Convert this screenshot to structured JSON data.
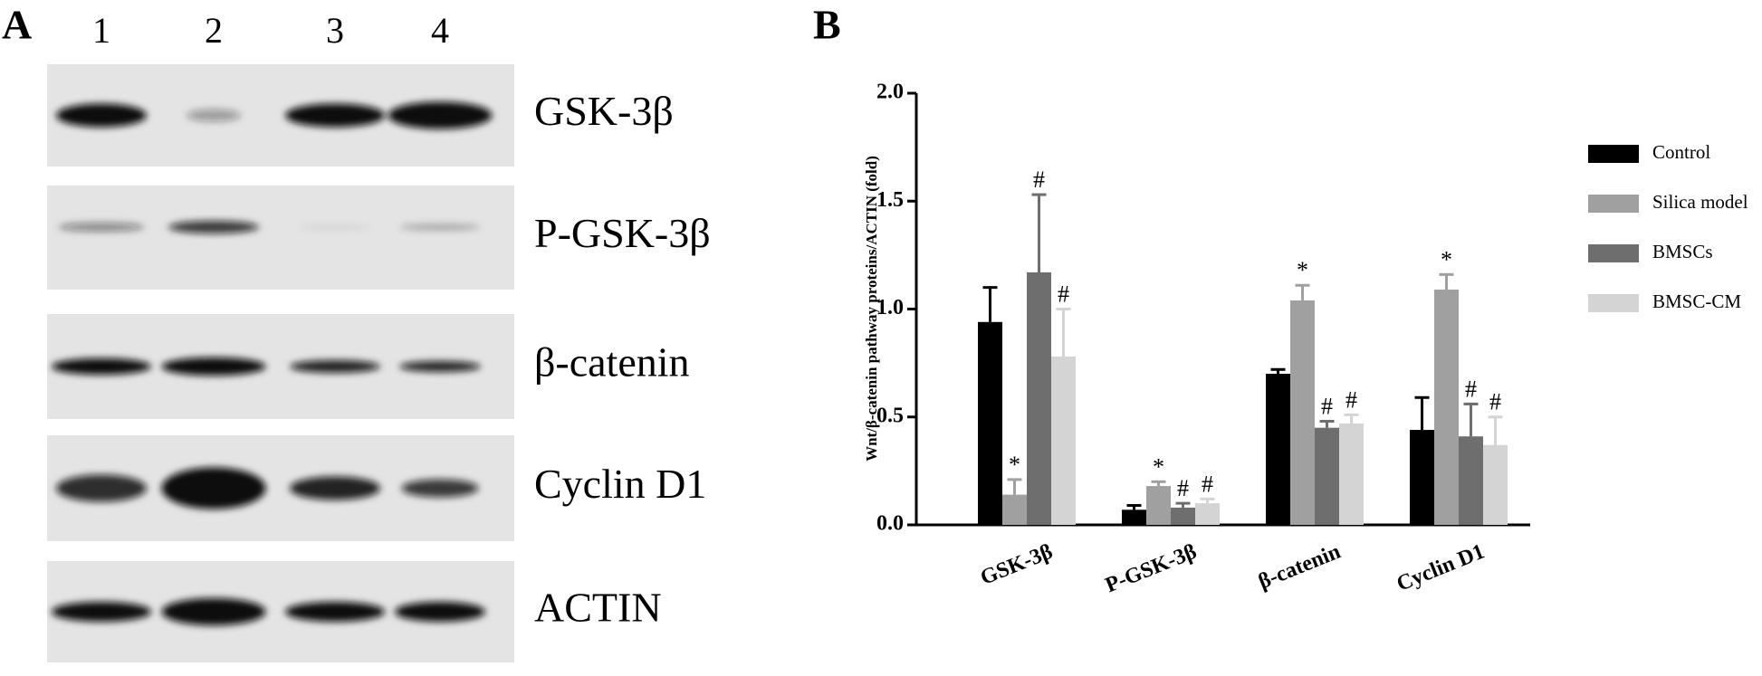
{
  "blot": {
    "label": "A",
    "lanes": [
      "1",
      "2",
      "3",
      "4"
    ],
    "proteins": [
      "GSK-3β",
      "P-GSK-3β",
      "β-catenin",
      "Cyclin D1",
      "ACTIN"
    ]
  },
  "chart_data": {
    "type": "bar",
    "panel_label": "B",
    "y_label": "Wnt/β-catenin pathway proteins/ACTIN (fold)",
    "categories": [
      "GSK-3β",
      "P-GSK-3β",
      "β-catenin",
      "Cyclin D1"
    ],
    "ylim": [
      0,
      2
    ],
    "yticks": [
      {
        "value": 0,
        "label": "0.0"
      },
      {
        "value": 0.5,
        "label": "0.5"
      },
      {
        "value": 1,
        "label": "1.0"
      },
      {
        "value": 1.5,
        "label": "1.5"
      },
      {
        "value": 2,
        "label": "2.0"
      }
    ],
    "grid": false,
    "legend": "right",
    "series": [
      {
        "name": "Control",
        "color": "#000000",
        "values": [
          0.94,
          0.07,
          0.7,
          0.44
        ],
        "errors": [
          0.16,
          0.02,
          0.02,
          0.15
        ]
      },
      {
        "name": "Silica model",
        "color": "#a0a0a0",
        "values": [
          0.14,
          0.18,
          1.04,
          1.09
        ],
        "errors": [
          0.07,
          0.02,
          0.07,
          0.07
        ],
        "annotations": [
          "*",
          "*",
          "*",
          "*"
        ]
      },
      {
        "name": "BMSCs",
        "color": "#6e6e6e",
        "values": [
          1.17,
          0.08,
          0.45,
          0.41
        ],
        "errors": [
          0.36,
          0.02,
          0.03,
          0.15
        ],
        "annotations": [
          "#",
          "#",
          "#",
          "#"
        ]
      },
      {
        "name": "BMSC-CM",
        "color": "#d4d4d4",
        "values": [
          0.78,
          0.1,
          0.47,
          0.37
        ],
        "errors": [
          0.22,
          0.02,
          0.04,
          0.13
        ],
        "annotations": [
          "#",
          "#",
          "#",
          "#"
        ]
      }
    ]
  }
}
